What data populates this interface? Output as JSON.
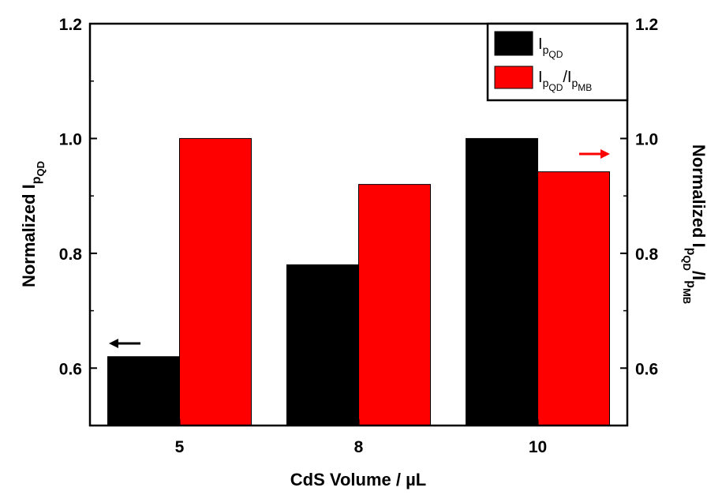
{
  "chart_data": {
    "type": "bar",
    "categories": [
      "5",
      "8",
      "10"
    ],
    "xlabel": "CdS Volume / µL",
    "ylabel": "Normalized Ip_QD",
    "y2label": "Normalized Ip_QD/Ip_MB",
    "ylim": [
      0.5,
      1.2
    ],
    "y2lim": [
      0.5,
      1.2
    ],
    "yticks": [
      "0.6",
      "0.8",
      "1.0",
      "1.2"
    ],
    "y2ticks": [
      "0.6",
      "0.8",
      "1.0",
      "1.2"
    ],
    "series": [
      {
        "name": "Ip_QD",
        "axis": "left",
        "color": "#000000",
        "values": [
          0.62,
          0.78,
          1.0
        ]
      },
      {
        "name": "Ip_QD/Ip_MB",
        "axis": "right",
        "color": "#ff0000",
        "values": [
          1.0,
          0.92,
          0.942
        ]
      }
    ],
    "legend": {
      "placement": "top-right",
      "entries": [
        {
          "main": "I",
          "sub1": "p",
          "sub2": "QD",
          "sep": "",
          "main2": "",
          "sub3": "",
          "sub4": ""
        },
        {
          "main": "I",
          "sub1": "p",
          "sub2": "QD",
          "sep": "/I",
          "main2": "",
          "sub3": "p",
          "sub4": "MB"
        }
      ]
    },
    "annotations": [
      {
        "type": "arrow",
        "direction": "left",
        "color": "#000000",
        "meaning": "left-axis"
      },
      {
        "type": "arrow",
        "direction": "right",
        "color": "#ff0000",
        "meaning": "right-axis"
      }
    ],
    "grid": false
  }
}
